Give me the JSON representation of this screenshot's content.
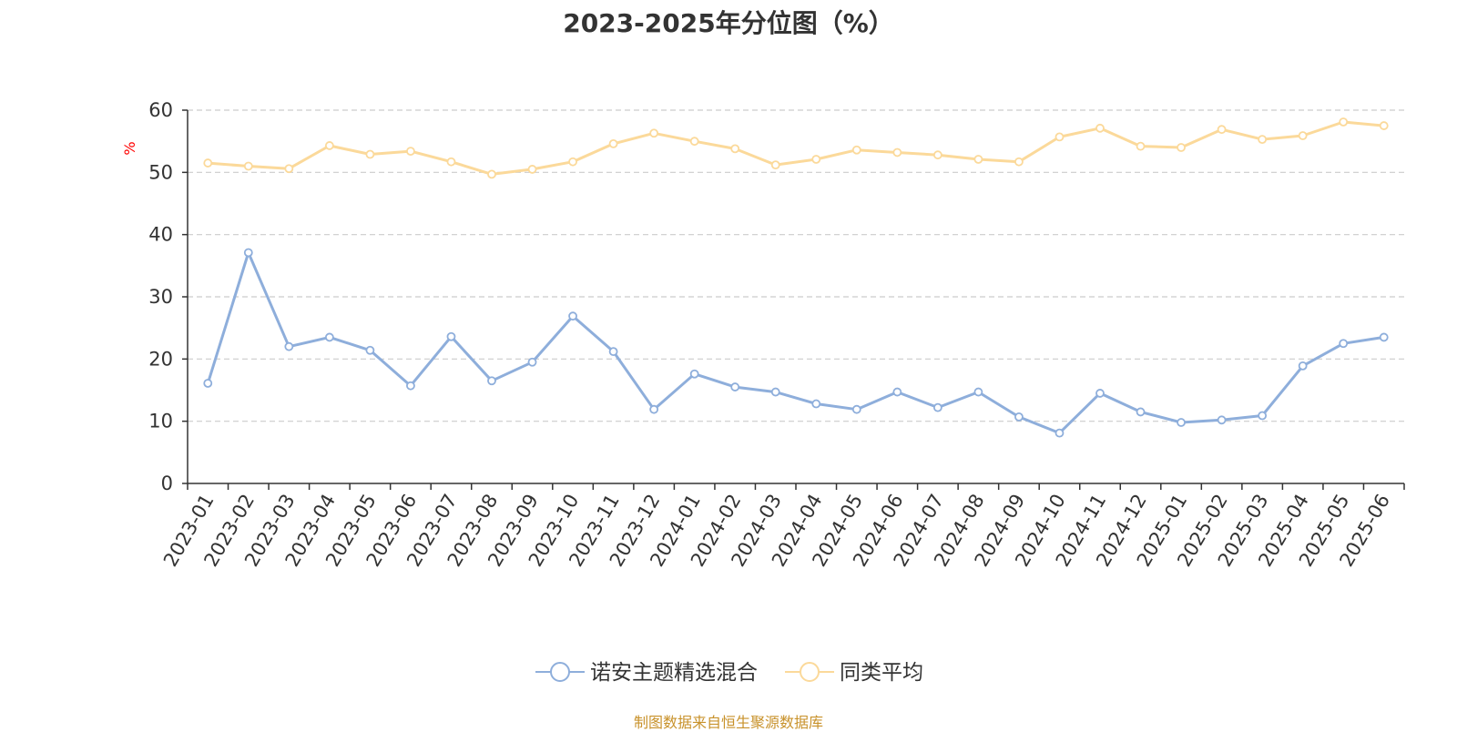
{
  "chart_data": {
    "type": "line",
    "title": "2023-2025年分位图（%）",
    "ylabel": "%",
    "xlabel": "",
    "ylim": [
      0,
      60
    ],
    "yticks": [
      0,
      10,
      20,
      30,
      40,
      50,
      60
    ],
    "grid": true,
    "legend_position": "bottom-center",
    "categories": [
      "2023-01",
      "2023-02",
      "2023-03",
      "2023-04",
      "2023-05",
      "2023-06",
      "2023-07",
      "2023-08",
      "2023-09",
      "2023-10",
      "2023-11",
      "2023-12",
      "2024-01",
      "2024-02",
      "2024-03",
      "2024-04",
      "2024-05",
      "2024-06",
      "2024-07",
      "2024-08",
      "2024-09",
      "2024-10",
      "2024-11",
      "2024-12",
      "2025-01",
      "2025-02",
      "2025-03",
      "2025-04",
      "2025-05",
      "2025-06"
    ],
    "series": [
      {
        "name": "诺安主题精选混合",
        "color": "#8eaedb",
        "values": [
          16.1,
          37.1,
          22.0,
          23.5,
          21.4,
          15.7,
          23.6,
          16.5,
          19.5,
          26.9,
          21.2,
          11.9,
          17.6,
          15.5,
          14.7,
          12.8,
          11.9,
          14.7,
          12.2,
          14.7,
          10.7,
          8.1,
          14.5,
          11.5,
          9.8,
          10.2,
          10.9,
          18.9,
          22.5,
          23.5
        ]
      },
      {
        "name": "同类平均",
        "color": "#fbd99a",
        "values": [
          51.5,
          51.0,
          50.6,
          54.3,
          52.9,
          53.4,
          51.7,
          49.7,
          50.5,
          51.7,
          54.6,
          56.3,
          55.0,
          53.8,
          51.2,
          52.1,
          53.6,
          53.2,
          52.8,
          52.1,
          51.7,
          55.7,
          57.1,
          54.2,
          54.0,
          56.9,
          55.3,
          55.9,
          58.1,
          57.5
        ]
      }
    ]
  },
  "source_note": "制图数据来自恒生聚源数据库"
}
